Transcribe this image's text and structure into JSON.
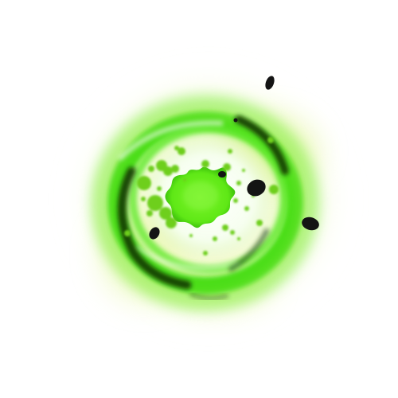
{
  "scene": {
    "asset": "acid-splash-explosion-sprite",
    "background_color": "#ffffff",
    "colors": {
      "acid_core": "#66f01a",
      "ring_bright": "#44e014",
      "ring_mid": "#2fbf0c",
      "ring_dark": "#0f2a06",
      "outer_haze": "#e2f6a4",
      "inner_glow": "#ffffff",
      "debris": "#141414",
      "droplet": "#6ecf1c"
    },
    "elements": [
      "outer-glow-haze",
      "energy-ring",
      "dark-swirl-streaks",
      "acid-core-splat",
      "acid-droplets",
      "debris-chunks"
    ]
  }
}
